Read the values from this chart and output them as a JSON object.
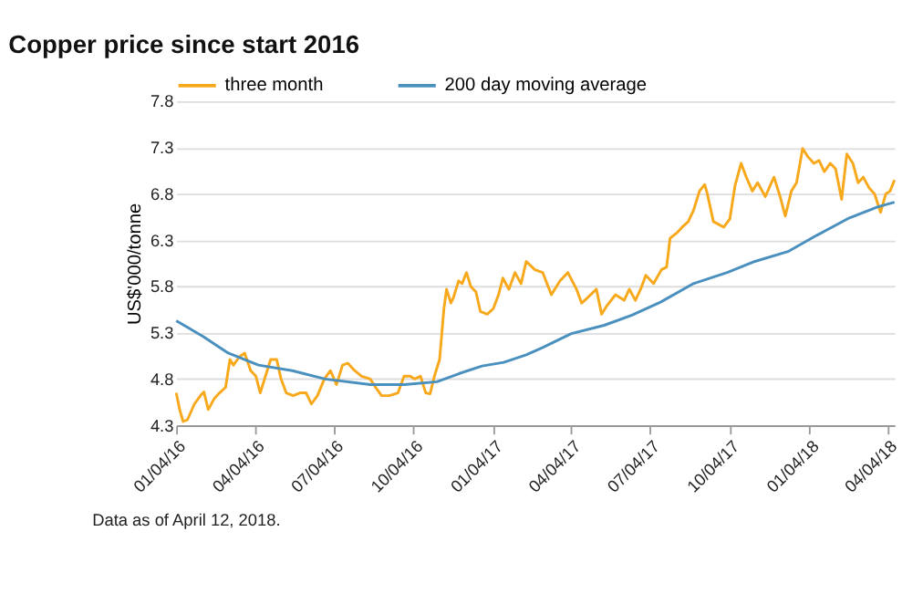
{
  "chart_data": {
    "type": "line",
    "title": "Copper price since start 2016",
    "ylabel": "US$'000/tonne",
    "annotations": [
      "Data as of April 12, 2018."
    ],
    "xlim": [
      "2016-01-04",
      "2018-04-12"
    ],
    "xticks": [
      {
        "value": "2016-01-04",
        "label": "01/04/16"
      },
      {
        "value": "2016-04-04",
        "label": "04/04/16"
      },
      {
        "value": "2016-07-04",
        "label": "07/04/16"
      },
      {
        "value": "2016-10-04",
        "label": "10/04/16"
      },
      {
        "value": "2017-01-04",
        "label": "01/04/17"
      },
      {
        "value": "2017-04-04",
        "label": "04/04/17"
      },
      {
        "value": "2017-07-04",
        "label": "07/04/17"
      },
      {
        "value": "2017-10-04",
        "label": "10/04/17"
      },
      {
        "value": "2018-01-04",
        "label": "01/04/18"
      },
      {
        "value": "2018-04-04",
        "label": "04/04/18"
      }
    ],
    "ylim": [
      4.3,
      7.8
    ],
    "yticks": [
      4.3,
      4.8,
      5.3,
      5.8,
      6.3,
      6.8,
      7.3,
      7.8
    ],
    "grid": "y",
    "legend": "top",
    "line_style": "solid",
    "marker": "none",
    "series": [
      {
        "name": "three month",
        "color": "#f7a81b",
        "x": [
          "2016-01-04",
          "2016-01-08",
          "2016-01-12",
          "2016-01-17",
          "2016-01-25",
          "2016-02-01",
          "2016-02-05",
          "2016-02-10",
          "2016-02-17",
          "2016-02-23",
          "2016-03-01",
          "2016-03-06",
          "2016-03-10",
          "2016-03-17",
          "2016-03-23",
          "2016-03-30",
          "2016-04-05",
          "2016-04-10",
          "2016-04-16",
          "2016-04-22",
          "2016-04-29",
          "2016-05-04",
          "2016-05-10",
          "2016-05-18",
          "2016-05-26",
          "2016-06-02",
          "2016-06-08",
          "2016-06-15",
          "2016-06-23",
          "2016-06-30",
          "2016-07-07",
          "2016-07-14",
          "2016-07-20",
          "2016-07-28",
          "2016-08-05",
          "2016-08-15",
          "2016-08-21",
          "2016-08-28",
          "2016-09-06",
          "2016-09-16",
          "2016-09-23",
          "2016-09-30",
          "2016-10-05",
          "2016-10-12",
          "2016-10-18",
          "2016-10-23",
          "2016-10-28",
          "2016-11-03",
          "2016-11-08",
          "2016-11-11",
          "2016-11-16",
          "2016-11-19",
          "2016-11-25",
          "2016-11-29",
          "2016-12-04",
          "2016-12-09",
          "2016-12-15",
          "2016-12-20",
          "2016-12-28",
          "2017-01-04",
          "2017-01-10",
          "2017-01-15",
          "2017-01-22",
          "2017-01-29",
          "2017-02-05",
          "2017-02-11",
          "2017-02-21",
          "2017-03-02",
          "2017-03-12",
          "2017-03-22",
          "2017-03-31",
          "2017-04-10",
          "2017-04-16",
          "2017-04-23",
          "2017-05-03",
          "2017-05-09",
          "2017-05-15",
          "2017-05-25",
          "2017-06-04",
          "2017-06-10",
          "2017-06-17",
          "2017-06-23",
          "2017-06-29",
          "2017-07-08",
          "2017-07-17",
          "2017-07-23",
          "2017-07-27",
          "2017-08-04",
          "2017-08-10",
          "2017-08-17",
          "2017-08-23",
          "2017-08-30",
          "2017-09-05",
          "2017-09-08",
          "2017-09-15",
          "2017-09-21",
          "2017-09-27",
          "2017-10-04",
          "2017-10-10",
          "2017-10-17",
          "2017-10-23",
          "2017-10-30",
          "2017-11-05",
          "2017-11-14",
          "2017-11-21",
          "2017-11-24",
          "2017-12-01",
          "2017-12-07",
          "2017-12-14",
          "2017-12-20",
          "2017-12-27",
          "2018-01-02",
          "2018-01-09",
          "2018-01-15",
          "2018-01-21",
          "2018-01-28",
          "2018-02-03",
          "2018-02-10",
          "2018-02-16",
          "2018-02-23",
          "2018-03-01",
          "2018-03-07",
          "2018-03-14",
          "2018-03-20",
          "2018-03-27",
          "2018-04-02",
          "2018-04-07",
          "2018-04-12"
        ],
        "values": [
          4.65,
          4.47,
          4.34,
          4.36,
          4.53,
          4.62,
          4.66,
          4.47,
          4.59,
          4.65,
          4.71,
          5.01,
          4.95,
          5.04,
          5.08,
          4.89,
          4.83,
          4.65,
          4.83,
          5.01,
          5.01,
          4.8,
          4.65,
          4.62,
          4.65,
          4.65,
          4.53,
          4.62,
          4.8,
          4.89,
          4.74,
          4.95,
          4.97,
          4.89,
          4.83,
          4.8,
          4.71,
          4.62,
          4.62,
          4.65,
          4.83,
          4.83,
          4.8,
          4.83,
          4.65,
          4.64,
          4.83,
          5.01,
          5.56,
          5.77,
          5.62,
          5.68,
          5.86,
          5.83,
          5.95,
          5.8,
          5.74,
          5.53,
          5.5,
          5.56,
          5.71,
          5.89,
          5.77,
          5.95,
          5.83,
          6.07,
          5.98,
          5.95,
          5.71,
          5.86,
          5.95,
          5.77,
          5.62,
          5.68,
          5.77,
          5.5,
          5.59,
          5.71,
          5.65,
          5.77,
          5.65,
          5.77,
          5.92,
          5.83,
          5.98,
          6.01,
          6.32,
          6.38,
          6.44,
          6.5,
          6.62,
          6.83,
          6.9,
          6.8,
          6.5,
          6.47,
          6.44,
          6.53,
          6.89,
          7.13,
          6.98,
          6.83,
          6.92,
          6.77,
          6.92,
          6.98,
          6.77,
          6.56,
          6.83,
          6.92,
          7.29,
          7.2,
          7.13,
          7.16,
          7.04,
          7.13,
          7.07,
          6.74,
          7.23,
          7.13,
          6.92,
          6.98,
          6.86,
          6.8,
          6.6,
          6.8,
          6.83,
          6.95
        ]
      },
      {
        "name": "200 day moving average",
        "color": "#4a90bf",
        "x": [
          "2016-01-04",
          "2016-02-04",
          "2016-03-04",
          "2016-04-08",
          "2016-05-17",
          "2016-06-24",
          "2016-08-15",
          "2016-09-23",
          "2016-10-31",
          "2016-11-26",
          "2016-12-22",
          "2017-01-16",
          "2017-02-11",
          "2017-03-02",
          "2017-04-04",
          "2017-05-12",
          "2017-06-13",
          "2017-07-16",
          "2017-08-23",
          "2017-10-01",
          "2017-11-02",
          "2017-12-11",
          "2018-01-12",
          "2018-02-19",
          "2018-03-24",
          "2018-04-12"
        ],
        "values": [
          5.43,
          5.26,
          5.08,
          4.95,
          4.89,
          4.8,
          4.74,
          4.74,
          4.77,
          4.86,
          4.94,
          4.98,
          5.06,
          5.14,
          5.29,
          5.38,
          5.49,
          5.63,
          5.83,
          5.95,
          6.07,
          6.18,
          6.35,
          6.54,
          6.66,
          6.71
        ]
      }
    ]
  }
}
